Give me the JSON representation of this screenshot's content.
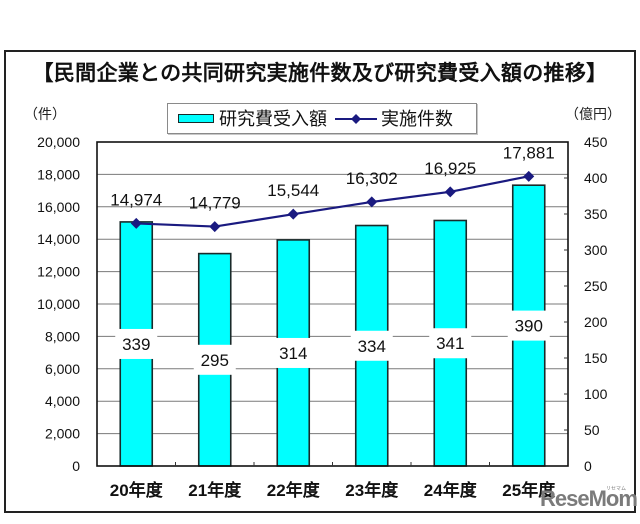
{
  "title": "【民間企業との共同研究実施件数及び研究費受入額の推移】",
  "axis_units": {
    "left": "（件）",
    "right": "（億円）"
  },
  "legend": {
    "bar_label": "研究費受入額",
    "line_label": "実施件数"
  },
  "watermark": {
    "brand": "ReseMom",
    "kana": "リセマム"
  },
  "colors": {
    "bar_fill": "#00FFFF",
    "bar_stroke": "#1A2A2A",
    "line": "#1A1A80",
    "grid": "#7A7A7A",
    "frame": "#222222"
  },
  "chart_data": {
    "type": "bar",
    "title": "【民間企業との共同研究実施件数及び研究費受入額の推移】",
    "xlabel": "",
    "ylabel": "（件）",
    "y2label": "（億円）",
    "categories": [
      "20年度",
      "21年度",
      "22年度",
      "23年度",
      "24年度",
      "25年度"
    ],
    "series": [
      {
        "name": "研究費受入額",
        "type": "bar",
        "axis": "right",
        "unit": "億円",
        "values": [
          339,
          295,
          314,
          334,
          341,
          390
        ],
        "labels": [
          "339",
          "295",
          "314",
          "334",
          "341",
          "390"
        ]
      },
      {
        "name": "実施件数",
        "type": "line",
        "marker": "diamond",
        "axis": "left",
        "unit": "件",
        "values": [
          14974,
          14779,
          15544,
          16302,
          16925,
          17881
        ],
        "labels": [
          "14,974",
          "14,779",
          "15,544",
          "16,302",
          "16,925",
          "17,881"
        ]
      }
    ],
    "left_axis": {
      "label": "（件）",
      "min": 0,
      "max": 20000,
      "step": 2000,
      "ticks": [
        "0",
        "2,000",
        "4,000",
        "6,000",
        "8,000",
        "10,000",
        "12,000",
        "14,000",
        "16,000",
        "18,000",
        "20,000"
      ]
    },
    "right_axis": {
      "label": "（億円）",
      "min": 0,
      "max": 450,
      "step": 50,
      "ticks": [
        "0",
        "50",
        "100",
        "150",
        "200",
        "250",
        "300",
        "350",
        "400",
        "450"
      ]
    },
    "ylim": [
      0,
      20000
    ],
    "y2lim": [
      0,
      450
    ],
    "grid": true,
    "legend_position": "top"
  }
}
